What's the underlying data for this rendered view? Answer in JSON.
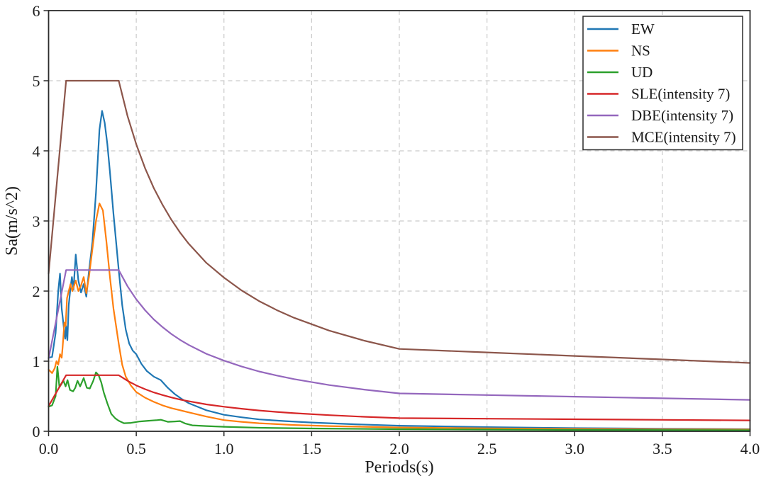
{
  "chart_data": {
    "type": "line",
    "title": "",
    "xlabel": "Periods(s)",
    "ylabel": "Sa(m/s^2)",
    "xlim": [
      0,
      4
    ],
    "ylim": [
      0,
      6
    ],
    "x_ticks": [
      "0.0",
      "0.5",
      "1.0",
      "1.5",
      "2.0",
      "2.5",
      "3.0",
      "3.5",
      "4.0"
    ],
    "y_ticks": [
      "0",
      "1",
      "2",
      "3",
      "4",
      "5",
      "6"
    ],
    "grid": true,
    "grid_color": "#cbcbcb",
    "spine_color": "#2b2b2b",
    "legend_position": "upper right",
    "series": [
      {
        "name": "EW",
        "color": "#1f77b4",
        "points": [
          [
            0,
            1.05
          ],
          [
            0.02,
            1.06
          ],
          [
            0.04,
            1.4
          ],
          [
            0.055,
            2.0
          ],
          [
            0.065,
            2.25
          ],
          [
            0.075,
            1.75
          ],
          [
            0.088,
            1.45
          ],
          [
            0.095,
            1.32
          ],
          [
            0.1,
            1.5
          ],
          [
            0.107,
            1.3
          ],
          [
            0.115,
            1.8
          ],
          [
            0.125,
            2.05
          ],
          [
            0.133,
            2.2
          ],
          [
            0.142,
            2.02
          ],
          [
            0.155,
            2.52
          ],
          [
            0.17,
            2.15
          ],
          [
            0.185,
            1.98
          ],
          [
            0.2,
            2.1
          ],
          [
            0.215,
            1.92
          ],
          [
            0.23,
            2.28
          ],
          [
            0.25,
            2.7
          ],
          [
            0.27,
            3.4
          ],
          [
            0.29,
            4.3
          ],
          [
            0.305,
            4.57
          ],
          [
            0.32,
            4.4
          ],
          [
            0.335,
            4.1
          ],
          [
            0.35,
            3.7
          ],
          [
            0.37,
            3.1
          ],
          [
            0.4,
            2.3
          ],
          [
            0.42,
            1.8
          ],
          [
            0.44,
            1.45
          ],
          [
            0.46,
            1.25
          ],
          [
            0.48,
            1.15
          ],
          [
            0.5,
            1.1
          ],
          [
            0.53,
            0.96
          ],
          [
            0.56,
            0.86
          ],
          [
            0.6,
            0.78
          ],
          [
            0.64,
            0.73
          ],
          [
            0.68,
            0.62
          ],
          [
            0.72,
            0.53
          ],
          [
            0.76,
            0.46
          ],
          [
            0.8,
            0.4
          ],
          [
            0.85,
            0.35
          ],
          [
            0.9,
            0.3
          ],
          [
            1,
            0.235
          ],
          [
            1.1,
            0.2
          ],
          [
            1.2,
            0.17
          ],
          [
            1.35,
            0.145
          ],
          [
            1.5,
            0.125
          ],
          [
            1.75,
            0.1
          ],
          [
            2,
            0.08
          ],
          [
            2.5,
            0.06
          ],
          [
            3,
            0.045
          ],
          [
            3.5,
            0.037
          ],
          [
            4,
            0.03
          ]
        ]
      },
      {
        "name": "NS",
        "color": "#ff7f0e",
        "points": [
          [
            0,
            0.88
          ],
          [
            0.02,
            0.83
          ],
          [
            0.035,
            0.9
          ],
          [
            0.045,
            1.0
          ],
          [
            0.055,
            0.95
          ],
          [
            0.065,
            1.1
          ],
          [
            0.075,
            1.05
          ],
          [
            0.08,
            1.2
          ],
          [
            0.09,
            1.55
          ],
          [
            0.097,
            1.5
          ],
          [
            0.105,
            1.9
          ],
          [
            0.115,
            2.0
          ],
          [
            0.125,
            2.1
          ],
          [
            0.135,
            2.0
          ],
          [
            0.155,
            2.15
          ],
          [
            0.17,
            2.0
          ],
          [
            0.185,
            2.08
          ],
          [
            0.2,
            2.2
          ],
          [
            0.215,
            1.97
          ],
          [
            0.23,
            2.2
          ],
          [
            0.25,
            2.6
          ],
          [
            0.27,
            3.0
          ],
          [
            0.29,
            3.25
          ],
          [
            0.31,
            3.15
          ],
          [
            0.33,
            2.7
          ],
          [
            0.35,
            2.2
          ],
          [
            0.37,
            1.75
          ],
          [
            0.4,
            1.25
          ],
          [
            0.42,
            0.95
          ],
          [
            0.44,
            0.78
          ],
          [
            0.47,
            0.65
          ],
          [
            0.5,
            0.56
          ],
          [
            0.55,
            0.48
          ],
          [
            0.6,
            0.42
          ],
          [
            0.65,
            0.37
          ],
          [
            0.7,
            0.33
          ],
          [
            0.8,
            0.27
          ],
          [
            0.9,
            0.21
          ],
          [
            1,
            0.16
          ],
          [
            1.1,
            0.135
          ],
          [
            1.2,
            0.115
          ],
          [
            1.4,
            0.09
          ],
          [
            1.6,
            0.075
          ],
          [
            1.8,
            0.065
          ],
          [
            2,
            0.055
          ],
          [
            2.5,
            0.042
          ],
          [
            3,
            0.034
          ],
          [
            3.5,
            0.028
          ],
          [
            4,
            0.025
          ]
        ]
      },
      {
        "name": "UD",
        "color": "#2ca02c",
        "points": [
          [
            0,
            0.35
          ],
          [
            0.02,
            0.37
          ],
          [
            0.04,
            0.5
          ],
          [
            0.05,
            0.92
          ],
          [
            0.062,
            0.63
          ],
          [
            0.075,
            0.68
          ],
          [
            0.085,
            0.72
          ],
          [
            0.097,
            0.64
          ],
          [
            0.108,
            0.73
          ],
          [
            0.122,
            0.59
          ],
          [
            0.14,
            0.57
          ],
          [
            0.152,
            0.62
          ],
          [
            0.165,
            0.72
          ],
          [
            0.18,
            0.64
          ],
          [
            0.2,
            0.76
          ],
          [
            0.218,
            0.62
          ],
          [
            0.235,
            0.61
          ],
          [
            0.255,
            0.72
          ],
          [
            0.27,
            0.84
          ],
          [
            0.285,
            0.8
          ],
          [
            0.3,
            0.7
          ],
          [
            0.315,
            0.55
          ],
          [
            0.335,
            0.4
          ],
          [
            0.357,
            0.25
          ],
          [
            0.38,
            0.185
          ],
          [
            0.4,
            0.15
          ],
          [
            0.43,
            0.115
          ],
          [
            0.47,
            0.12
          ],
          [
            0.52,
            0.14
          ],
          [
            0.57,
            0.15
          ],
          [
            0.62,
            0.16
          ],
          [
            0.64,
            0.165
          ],
          [
            0.68,
            0.135
          ],
          [
            0.72,
            0.14
          ],
          [
            0.75,
            0.145
          ],
          [
            0.78,
            0.11
          ],
          [
            0.82,
            0.085
          ],
          [
            0.9,
            0.075
          ],
          [
            1,
            0.065
          ],
          [
            1.2,
            0.05
          ],
          [
            1.5,
            0.04
          ],
          [
            2,
            0.03
          ],
          [
            2.5,
            0.025
          ],
          [
            3,
            0.02
          ],
          [
            3.5,
            0.018
          ],
          [
            4,
            0.015
          ]
        ]
      },
      {
        "name": "SLE(intensity 7)",
        "color": "#d62728",
        "points": [
          [
            0,
            0.36
          ],
          [
            0.1,
            0.8
          ],
          [
            0.4,
            0.8
          ],
          [
            0.45,
            0.72
          ],
          [
            0.5,
            0.655
          ],
          [
            0.55,
            0.601
          ],
          [
            0.6,
            0.555
          ],
          [
            0.65,
            0.517
          ],
          [
            0.7,
            0.483
          ],
          [
            0.75,
            0.453
          ],
          [
            0.8,
            0.428
          ],
          [
            0.9,
            0.384
          ],
          [
            1,
            0.351
          ],
          [
            1.1,
            0.322
          ],
          [
            1.2,
            0.297
          ],
          [
            1.3,
            0.277
          ],
          [
            1.4,
            0.259
          ],
          [
            1.6,
            0.23
          ],
          [
            1.8,
            0.207
          ],
          [
            2,
            0.188
          ],
          [
            2.5,
            0.18
          ],
          [
            3,
            0.172
          ],
          [
            3.5,
            0.164
          ],
          [
            4,
            0.156
          ]
        ]
      },
      {
        "name": "DBE(intensity 7)",
        "color": "#9467bd",
        "points": [
          [
            0,
            1.035
          ],
          [
            0.1,
            2.3
          ],
          [
            0.4,
            2.3
          ],
          [
            0.45,
            2.069
          ],
          [
            0.5,
            1.883
          ],
          [
            0.55,
            1.727
          ],
          [
            0.6,
            1.596
          ],
          [
            0.65,
            1.486
          ],
          [
            0.7,
            1.388
          ],
          [
            0.75,
            1.304
          ],
          [
            0.8,
            1.23
          ],
          [
            0.9,
            1.105
          ],
          [
            1,
            1.008
          ],
          [
            1.1,
            0.925
          ],
          [
            1.2,
            0.854
          ],
          [
            1.3,
            0.796
          ],
          [
            1.4,
            0.744
          ],
          [
            1.6,
            0.66
          ],
          [
            1.8,
            0.595
          ],
          [
            2,
            0.54
          ],
          [
            2.5,
            0.517
          ],
          [
            3,
            0.494
          ],
          [
            3.5,
            0.471
          ],
          [
            4,
            0.448
          ]
        ]
      },
      {
        "name": "MCE(intensity 7)",
        "color": "#8c564b",
        "points": [
          [
            0,
            2.25
          ],
          [
            0.1,
            5.0
          ],
          [
            0.4,
            5.0
          ],
          [
            0.45,
            4.497
          ],
          [
            0.5,
            4.094
          ],
          [
            0.55,
            3.754
          ],
          [
            0.6,
            3.47
          ],
          [
            0.65,
            3.23
          ],
          [
            0.7,
            3.017
          ],
          [
            0.75,
            2.834
          ],
          [
            0.8,
            2.673
          ],
          [
            0.9,
            2.402
          ],
          [
            1,
            2.192
          ],
          [
            1.1,
            2.01
          ],
          [
            1.2,
            1.858
          ],
          [
            1.3,
            1.73
          ],
          [
            1.4,
            1.619
          ],
          [
            1.6,
            1.436
          ],
          [
            1.8,
            1.293
          ],
          [
            2,
            1.175
          ],
          [
            2.5,
            1.125
          ],
          [
            3,
            1.075
          ],
          [
            3.5,
            1.025
          ],
          [
            4,
            0.975
          ]
        ]
      }
    ]
  }
}
